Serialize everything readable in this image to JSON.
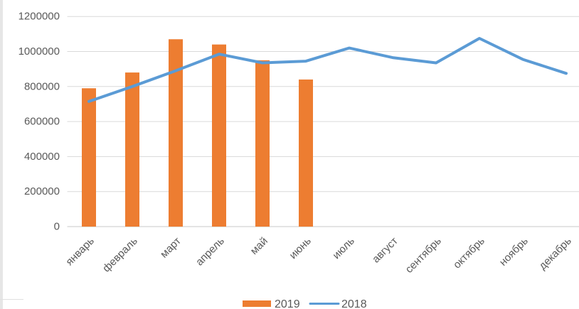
{
  "window": {
    "left_strip_color": "#E6E6E6",
    "edge_artifact_color": "#E0E0E0"
  },
  "chart_data": {
    "type": "combo",
    "title": "",
    "xlabel": "",
    "ylabel": "",
    "categories": [
      "январь",
      "февраль",
      "март",
      "апрель",
      "май",
      "июнь",
      "июль",
      "август",
      "сентябрь",
      "октябрь",
      "ноябрь",
      "декабрь"
    ],
    "series": [
      {
        "name": "2019",
        "type": "bar",
        "color": "#ED7D31",
        "values": [
          790000,
          880000,
          1070000,
          1040000,
          950000,
          840000,
          null,
          null,
          null,
          null,
          null,
          null
        ]
      },
      {
        "name": "2018",
        "type": "line",
        "color": "#5B9BD5",
        "values": [
          715000,
          800000,
          890000,
          985000,
          935000,
          945000,
          1020000,
          965000,
          935000,
          1075000,
          955000,
          875000
        ]
      }
    ],
    "ylim": [
      0,
      1200000
    ],
    "yticks": [
      0,
      200000,
      400000,
      600000,
      800000,
      1000000,
      1200000
    ],
    "ytick_labels": [
      "0",
      "200000",
      "400000",
      "600000",
      "800000",
      "1000000",
      "1200000"
    ],
    "grid": true,
    "legend_position": "bottom",
    "legend": [
      {
        "label": "2019",
        "swatch": "bar"
      },
      {
        "label": "2018",
        "swatch": "line"
      }
    ],
    "styles": {
      "text_color": "#595959",
      "gridline_color": "#D9D9D9",
      "zero_line_color": "#C9C9C9",
      "background": "#FFFFFF"
    }
  }
}
